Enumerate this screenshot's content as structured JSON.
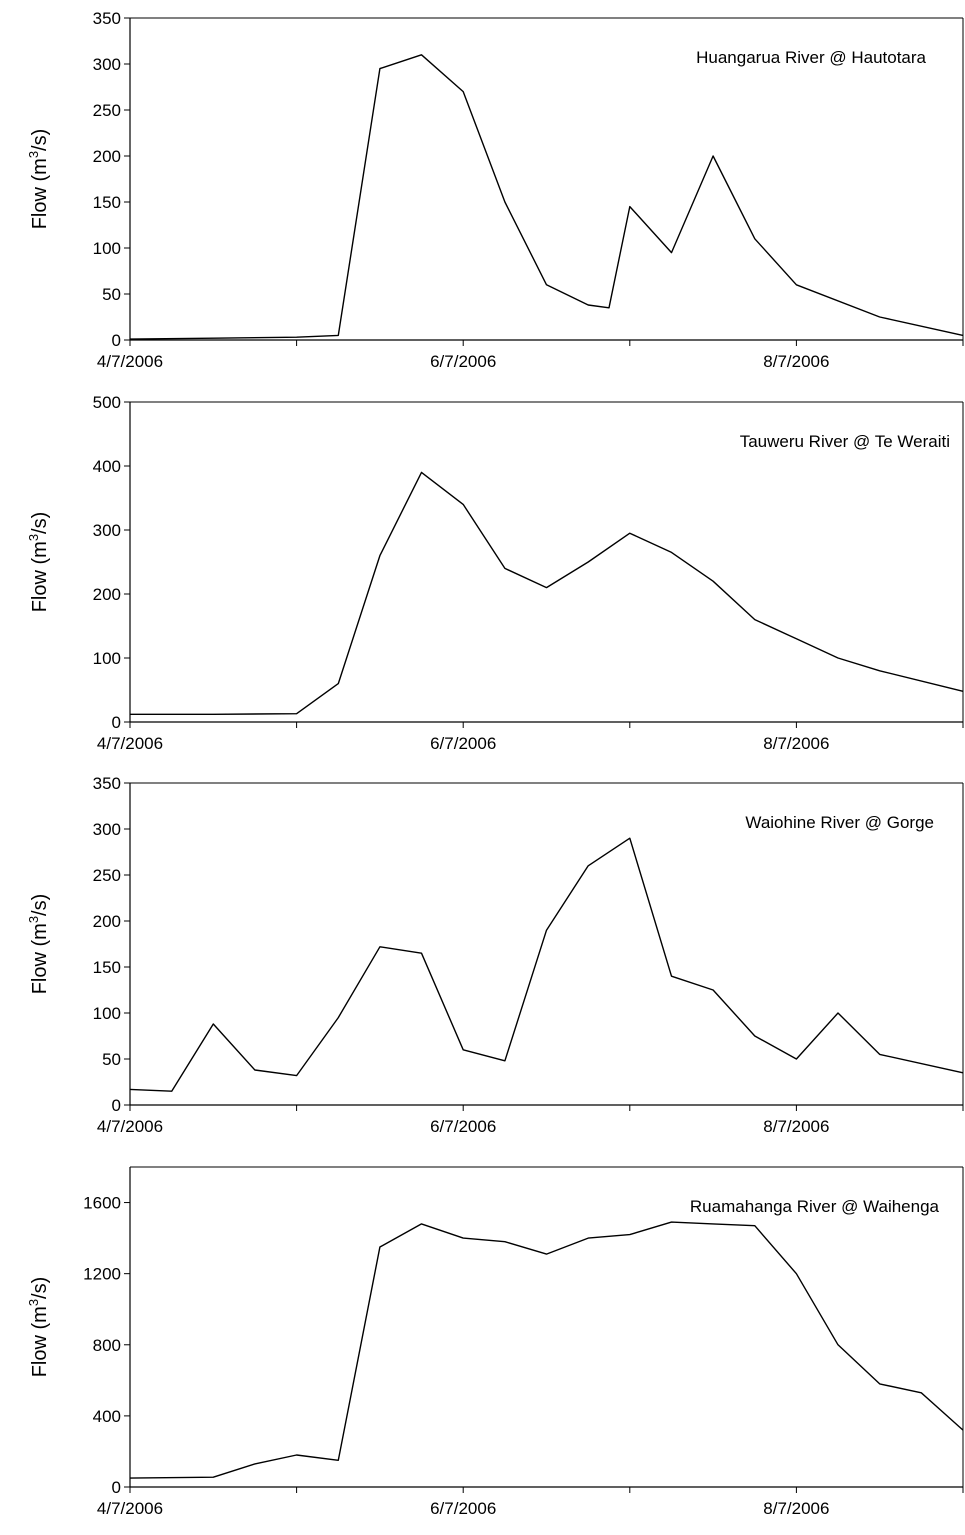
{
  "chart_data": [
    {
      "type": "line",
      "title": "Huangarua River @ Hautotara",
      "ylabel": "Flow (m³/s)",
      "ylim": [
        0,
        350
      ],
      "yticks": [
        0,
        50,
        100,
        150,
        200,
        250,
        300,
        350
      ],
      "xlim": [
        "2006-07-04",
        "2006-07-09"
      ],
      "xticks": [
        "4/7/2006",
        "6/7/2006",
        "8/7/2006"
      ],
      "grid": false,
      "x": [
        "2006-07-04 00:00",
        "2006-07-04 12:00",
        "2006-07-05 00:00",
        "2006-07-05 06:00",
        "2006-07-05 12:00",
        "2006-07-05 18:00",
        "2006-07-06 00:00",
        "2006-07-06 06:00",
        "2006-07-06 12:00",
        "2006-07-06 18:00",
        "2006-07-06 21:00",
        "2006-07-07 00:00",
        "2006-07-07 06:00",
        "2006-07-07 12:00",
        "2006-07-07 18:00",
        "2006-07-08 00:00",
        "2006-07-08 12:00",
        "2006-07-09 00:00"
      ],
      "series": [
        {
          "values": [
            1,
            2,
            3,
            5,
            295,
            310,
            270,
            150,
            60,
            38,
            35,
            145,
            95,
            200,
            110,
            60,
            25,
            5
          ]
        }
      ]
    },
    {
      "type": "line",
      "title": "Tauweru River @ Te Weraiti",
      "ylabel": "Flow (m³/s)",
      "ylim": [
        0,
        500
      ],
      "yticks": [
        0,
        100,
        200,
        300,
        400,
        500
      ],
      "xlim": [
        "2006-07-04",
        "2006-07-09"
      ],
      "xticks": [
        "4/7/2006",
        "6/7/2006",
        "8/7/2006"
      ],
      "grid": false,
      "x": [
        "2006-07-04 00:00",
        "2006-07-04 12:00",
        "2006-07-05 00:00",
        "2006-07-05 06:00",
        "2006-07-05 12:00",
        "2006-07-05 18:00",
        "2006-07-06 00:00",
        "2006-07-06 06:00",
        "2006-07-06 12:00",
        "2006-07-06 18:00",
        "2006-07-07 00:00",
        "2006-07-07 06:00",
        "2006-07-07 12:00",
        "2006-07-07 18:00",
        "2006-07-08 00:00",
        "2006-07-08 06:00",
        "2006-07-08 12:00",
        "2006-07-09 00:00"
      ],
      "series": [
        {
          "values": [
            12,
            12,
            13,
            60,
            260,
            390,
            340,
            240,
            210,
            250,
            295,
            265,
            220,
            160,
            130,
            100,
            80,
            48
          ]
        }
      ]
    },
    {
      "type": "line",
      "title": "Waiohine River @ Gorge",
      "ylabel": "Flow (m³/s)",
      "ylim": [
        0,
        350
      ],
      "yticks": [
        0,
        50,
        100,
        150,
        200,
        250,
        300,
        350
      ],
      "xlim": [
        "2006-07-04",
        "2006-07-09"
      ],
      "xticks": [
        "4/7/2006",
        "6/7/2006",
        "8/7/2006"
      ],
      "grid": false,
      "x": [
        "2006-07-04 00:00",
        "2006-07-04 06:00",
        "2006-07-04 12:00",
        "2006-07-04 18:00",
        "2006-07-05 00:00",
        "2006-07-05 06:00",
        "2006-07-05 12:00",
        "2006-07-05 18:00",
        "2006-07-06 00:00",
        "2006-07-06 06:00",
        "2006-07-06 12:00",
        "2006-07-06 18:00",
        "2006-07-07 00:00",
        "2006-07-07 06:00",
        "2006-07-07 12:00",
        "2006-07-07 18:00",
        "2006-07-08 00:00",
        "2006-07-08 06:00",
        "2006-07-08 12:00",
        "2006-07-09 00:00"
      ],
      "series": [
        {
          "values": [
            17,
            15,
            88,
            38,
            32,
            95,
            172,
            165,
            60,
            48,
            190,
            260,
            290,
            140,
            125,
            75,
            50,
            100,
            55,
            35
          ]
        }
      ]
    },
    {
      "type": "line",
      "title": "Ruamahanga River @ Waihenga",
      "ylabel": "Flow (m³/s)",
      "ylim": [
        0,
        1800
      ],
      "yticks": [
        0,
        400,
        800,
        1200,
        1600
      ],
      "xlim": [
        "2006-07-04",
        "2006-07-09"
      ],
      "xticks": [
        "4/7/2006",
        "6/7/2006",
        "8/7/2006"
      ],
      "grid": false,
      "x": [
        "2006-07-04 00:00",
        "2006-07-04 12:00",
        "2006-07-04 18:00",
        "2006-07-05 00:00",
        "2006-07-05 06:00",
        "2006-07-05 12:00",
        "2006-07-05 18:00",
        "2006-07-06 00:00",
        "2006-07-06 06:00",
        "2006-07-06 12:00",
        "2006-07-06 18:00",
        "2006-07-07 00:00",
        "2006-07-07 06:00",
        "2006-07-07 12:00",
        "2006-07-07 18:00",
        "2006-07-08 00:00",
        "2006-07-08 06:00",
        "2006-07-08 12:00",
        "2006-07-08 18:00",
        "2006-07-09 00:00"
      ],
      "series": [
        {
          "values": [
            50,
            55,
            130,
            180,
            150,
            1350,
            1480,
            1400,
            1380,
            1310,
            1400,
            1420,
            1490,
            1480,
            1470,
            1200,
            800,
            580,
            530,
            320
          ]
        }
      ]
    }
  ]
}
